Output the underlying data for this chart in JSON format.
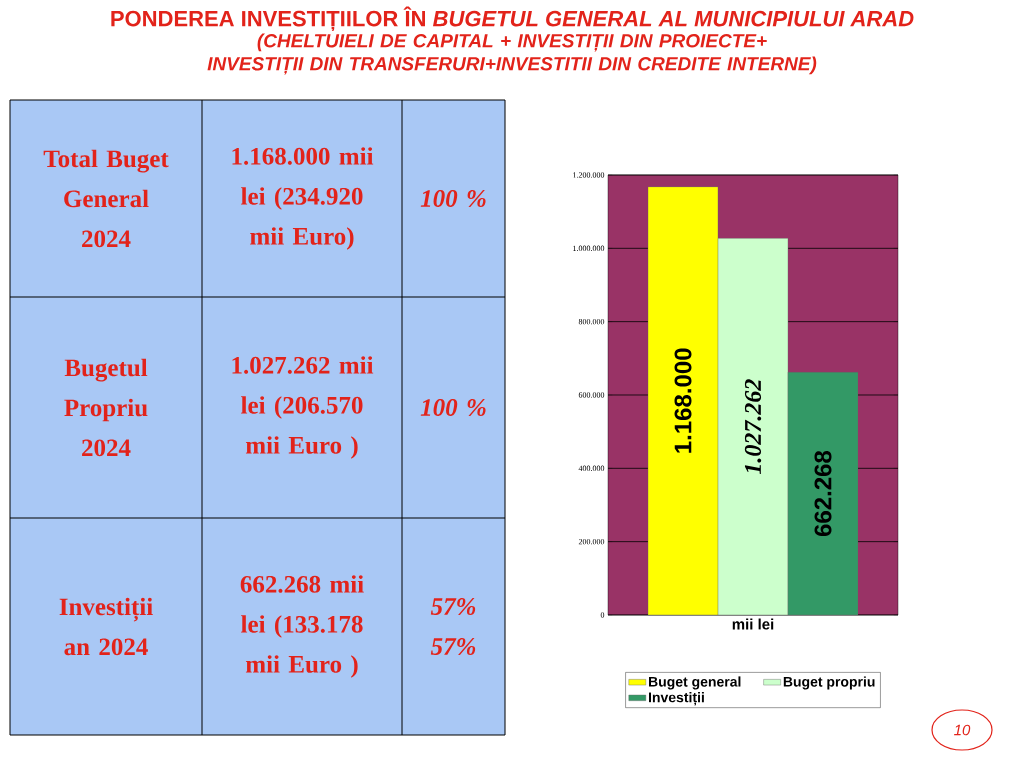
{
  "chart_data": [
    {
      "type": "other",
      "title": "PONDEREA INVESTIȚIILOR ÎN *BUGETUL GENERAL AL MUNICIPIULUI ARAD*",
      "subtitle": "(CHELTUIELI DE CAPITAL + INVESTIȚII DIN PROIECTE+ INVESTIȚII DIN TRANSFERURI+INVESTITII DIN CREDITE INTERNE)",
      "annotations": [
        "Total Buget General 2024",
        "1.168.000 mii lei (234.920 mii Euro)",
        "100 %",
        "Bugetul Propriu 2024",
        "1.027.262 mii lei (206.570 mii Euro )",
        "100 %",
        "Investiții an 2024",
        "662.268 mii lei (133.178 mii Euro )",
        "57% 57%",
        "10"
      ]
    },
    {
      "type": "bar",
      "categories": [
        null
      ],
      "xlabel": "mii lei",
      "series": [
        {
          "name": "Buget general",
          "color": "#ffff00",
          "values": [
            1168000
          ],
          "value_labels": [
            "1.168.000"
          ]
        },
        {
          "name": "Buget propriu",
          "color": "#ccffcc",
          "values": [
            1027262
          ],
          "value_labels": [
            "1.027.262"
          ]
        },
        {
          "name": "Investiții",
          "color": "#339966",
          "values": [
            662268
          ],
          "value_labels": [
            "662.268"
          ]
        }
      ],
      "ylim": [
        0,
        1200000
      ],
      "yticks": [
        {
          "value": 0,
          "label": "0"
        },
        {
          "value": 200000,
          "label": "200.000"
        },
        {
          "value": 400000,
          "label": "400.000"
        },
        {
          "value": 600000,
          "label": "600.000"
        },
        {
          "value": 800000,
          "label": "800.000"
        },
        {
          "value": 1000000,
          "label": "1.000.000"
        },
        {
          "value": 1200000,
          "label": "1.200.000"
        }
      ],
      "grid": "y",
      "legend": "bottom"
    }
  ]
}
